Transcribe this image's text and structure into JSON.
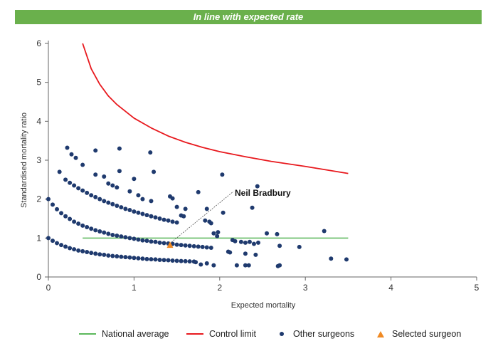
{
  "header": {
    "banner_text": "In line with expected rate"
  },
  "colors": {
    "banner_bg": "#6ab04c",
    "national_average": "#5cb85c",
    "control_limit": "#e8191e",
    "other_surgeons": "#1f3a6e",
    "selected_surgeon": "#f08a24"
  },
  "chart_data": {
    "type": "scatter",
    "xlabel": "Expected mortality",
    "ylabel": "Standardised mortality ratio",
    "xlim": [
      0,
      5
    ],
    "ylim": [
      0,
      6
    ],
    "xticks": [
      "0",
      "1",
      "2",
      "3",
      "4",
      "5"
    ],
    "yticks": [
      "0",
      "1",
      "2",
      "3",
      "4",
      "5",
      "6"
    ],
    "grid": false,
    "legend_position": "bottom",
    "series": [
      {
        "name": "National average",
        "type": "line",
        "x": [
          0.4,
          3.5
        ],
        "y": [
          1,
          1
        ]
      },
      {
        "name": "Control limit",
        "type": "line",
        "x": [
          0.4,
          0.5,
          0.6,
          0.7,
          0.8,
          1.0,
          1.2,
          1.4,
          1.6,
          1.8,
          2.0,
          2.3,
          2.6,
          3.0,
          3.5
        ],
        "y": [
          6.0,
          5.35,
          4.95,
          4.65,
          4.43,
          4.08,
          3.83,
          3.62,
          3.46,
          3.33,
          3.22,
          3.09,
          2.97,
          2.84,
          2.66
        ]
      },
      {
        "name": "Other surgeons",
        "type": "scatter",
        "x": [
          0.0,
          0.05,
          0.1,
          0.15,
          0.2,
          0.25,
          0.3,
          0.35,
          0.4,
          0.45,
          0.5,
          0.55,
          0.6,
          0.65,
          0.7,
          0.75,
          0.8,
          0.85,
          0.9,
          0.95,
          1.0,
          1.05,
          1.1,
          1.15,
          1.2,
          1.25,
          1.3,
          1.35,
          1.4,
          1.45,
          1.5,
          1.55,
          1.6,
          1.65,
          1.7,
          0.0,
          0.05,
          0.1,
          0.15,
          0.2,
          0.25,
          0.3,
          0.35,
          0.4,
          0.45,
          0.5,
          0.55,
          0.6,
          0.65,
          0.7,
          0.75,
          0.8,
          0.85,
          0.9,
          0.95,
          1.0,
          1.05,
          1.1,
          1.15,
          1.2,
          1.25,
          1.3,
          1.35,
          1.4,
          1.45,
          1.5,
          1.55,
          1.6,
          1.65,
          1.7,
          1.75,
          1.8,
          1.85,
          1.9,
          0.2,
          0.25,
          0.3,
          0.35,
          0.4,
          0.45,
          0.5,
          0.55,
          0.6,
          0.65,
          0.7,
          0.75,
          0.8,
          0.85,
          0.9,
          0.95,
          1.0,
          1.05,
          1.1,
          1.15,
          1.2,
          1.25,
          1.3,
          1.35,
          1.4,
          1.45,
          1.5,
          0.55,
          0.65,
          0.7,
          0.75,
          0.8,
          0.95,
          1.05,
          1.1,
          1.2,
          1.5,
          1.6,
          0.13,
          0.22,
          0.27,
          0.32,
          0.4,
          0.55,
          0.83,
          0.83,
          1.0,
          1.19,
          1.23,
          1.42,
          1.45,
          1.55,
          1.58,
          1.75,
          1.83,
          1.85,
          2.03,
          2.44,
          2.38,
          2.04,
          1.98,
          1.88,
          1.9,
          1.93,
          1.97,
          2.15,
          2.18,
          2.25,
          2.3,
          2.35,
          2.4,
          2.45,
          2.55,
          2.67,
          2.7,
          2.93,
          3.22,
          3.3,
          3.48,
          2.1,
          2.12,
          2.3,
          2.42,
          2.68,
          2.7,
          1.72,
          1.85,
          1.78,
          1.93,
          2.2,
          2.3,
          2.34
        ],
        "y": [
          1.0,
          0.93,
          0.87,
          0.82,
          0.78,
          0.74,
          0.71,
          0.68,
          0.66,
          0.64,
          0.62,
          0.6,
          0.58,
          0.57,
          0.55,
          0.54,
          0.53,
          0.52,
          0.51,
          0.5,
          0.49,
          0.48,
          0.47,
          0.46,
          0.455,
          0.45,
          0.44,
          0.435,
          0.43,
          0.42,
          0.415,
          0.41,
          0.405,
          0.4,
          0.395,
          2.0,
          1.86,
          1.74,
          1.64,
          1.56,
          1.49,
          1.42,
          1.37,
          1.32,
          1.28,
          1.24,
          1.2,
          1.17,
          1.14,
          1.11,
          1.08,
          1.06,
          1.04,
          1.02,
          1.0,
          0.98,
          0.96,
          0.94,
          0.93,
          0.91,
          0.9,
          0.88,
          0.87,
          0.86,
          0.85,
          0.83,
          0.82,
          0.81,
          0.8,
          0.79,
          0.78,
          0.77,
          0.76,
          0.75,
          2.5,
          2.42,
          2.35,
          2.28,
          2.22,
          2.16,
          2.1,
          2.05,
          2.0,
          1.95,
          1.91,
          1.87,
          1.83,
          1.79,
          1.75,
          1.72,
          1.68,
          1.65,
          1.62,
          1.59,
          1.56,
          1.53,
          1.5,
          1.47,
          1.45,
          1.42,
          1.4,
          2.63,
          2.58,
          2.4,
          2.35,
          2.3,
          2.2,
          2.1,
          2.0,
          1.95,
          1.8,
          1.75,
          2.7,
          3.32,
          3.15,
          3.06,
          2.88,
          3.25,
          3.3,
          2.72,
          2.52,
          3.2,
          2.7,
          2.07,
          2.02,
          1.58,
          1.56,
          2.18,
          1.45,
          1.75,
          2.63,
          2.33,
          1.78,
          1.65,
          1.15,
          1.42,
          1.38,
          1.12,
          1.05,
          0.95,
          0.92,
          0.9,
          0.88,
          0.9,
          0.85,
          0.88,
          1.12,
          1.1,
          0.8,
          0.77,
          1.18,
          0.47,
          0.45,
          0.65,
          0.63,
          0.6,
          0.57,
          0.28,
          0.3,
          0.38,
          0.35,
          0.32,
          0.3,
          0.3,
          0.3,
          0.3
        ]
      },
      {
        "name": "Selected surgeon",
        "type": "scatter",
        "x": [
          1.42
        ],
        "y": [
          0.82
        ]
      }
    ],
    "annotations": [
      {
        "text": "Neil Bradbury",
        "target_series": "Selected surgeon"
      }
    ]
  }
}
